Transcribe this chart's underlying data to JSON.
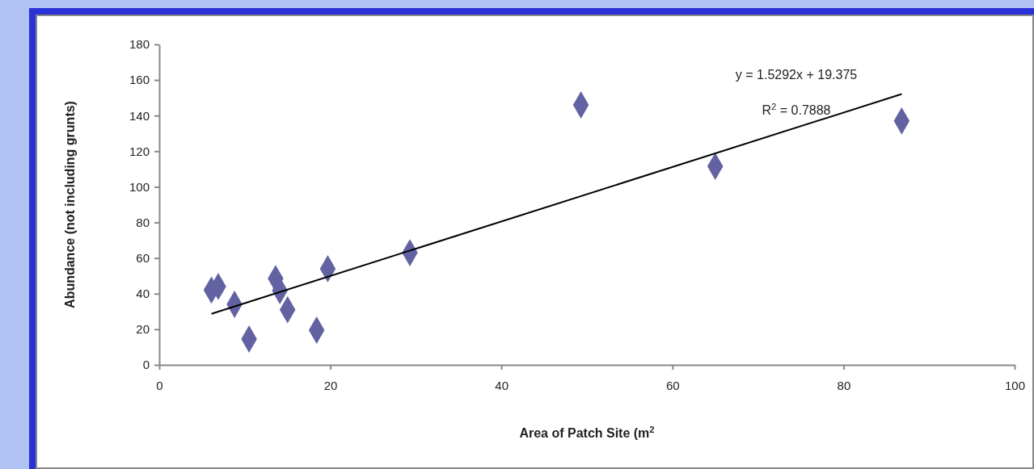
{
  "chart_data": {
    "type": "scatter",
    "xlabel": "Area of Patch Site (m$^{2}$",
    "ylabel": "Abundance (not including grunts)",
    "xlim": [
      0,
      100
    ],
    "ylim": [
      0,
      180
    ],
    "xticks": [
      0,
      20,
      40,
      60,
      80,
      100
    ],
    "yticks": [
      0,
      20,
      40,
      60,
      80,
      100,
      120,
      140,
      160,
      180
    ],
    "grid": false,
    "series": [
      {
        "color": "#6262a2",
        "marker": "diamond",
        "x": [
          6.1,
          6.9,
          8.8,
          10.5,
          13.6,
          14.1,
          15.0,
          18.4,
          19.7,
          29.3,
          49.3,
          65.0,
          86.8
        ],
        "values": [
          42,
          44,
          34,
          14.5,
          48.5,
          41.7,
          31,
          19.5,
          54,
          63,
          146,
          111.5,
          137
        ]
      },
      {
        "type": "line",
        "color": "#000000",
        "marker": "none",
        "line_style": "solid",
        "x": [
          6.1,
          86.8
        ],
        "values": [
          28.7,
          152.1
        ]
      }
    ],
    "annotations": [
      "y = 1.5292x + 19.375",
      "R$^{2}$ = 0.7888"
    ]
  }
}
